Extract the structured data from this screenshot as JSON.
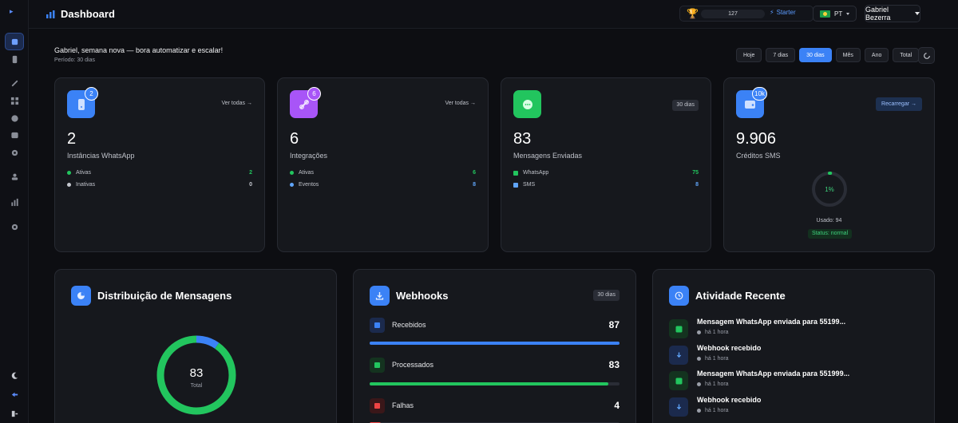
{
  "header": {
    "title": "Dashboard",
    "xp_value": "127",
    "plan": "Starter",
    "language": "PT",
    "user_name": "Gabriel Bezerra"
  },
  "greeting": {
    "message": "Gabriel, semana nova — bora automatizar e escalar!",
    "period": "Período: 30 dias"
  },
  "filters": {
    "options": [
      "Hoje",
      "7 dias",
      "30 dias",
      "Mês",
      "Ano",
      "Total"
    ],
    "active": "30 dias"
  },
  "stats": {
    "instances": {
      "badge": "2",
      "link": "Ver todas →",
      "value": "2",
      "label": "Instâncias WhatsApp",
      "rows": [
        {
          "label": "Ativas",
          "value": "2"
        },
        {
          "label": "Inativas",
          "value": "0"
        }
      ]
    },
    "integrations": {
      "badge": "6",
      "link": "Ver todas →",
      "value": "6",
      "label": "Integrações",
      "rows": [
        {
          "label": "Ativas",
          "value": "6"
        },
        {
          "label": "Eventos",
          "value": "8"
        }
      ]
    },
    "messages": {
      "tag": "30 dias",
      "value": "83",
      "label": "Mensagens Enviadas",
      "rows": [
        {
          "label": "WhatsApp",
          "value": "75"
        },
        {
          "label": "SMS",
          "value": "8"
        }
      ]
    },
    "sms": {
      "badge": "10k",
      "button": "Recarregar →",
      "value": "9.906",
      "label": "Créditos SMS",
      "usage_percent": 1,
      "usage_label": "1%",
      "used": "Usado: 94",
      "status": "Status: normal"
    }
  },
  "distribution": {
    "title": "Distribuição de Mensagens",
    "total": "83",
    "total_label": "Total",
    "whatsapp": 75,
    "sms": 8
  },
  "webhooks": {
    "title": "Webhooks",
    "tag": "30 dias",
    "items": [
      {
        "label": "Recebidos",
        "value": "87",
        "fraction": 1.0
      },
      {
        "label": "Processados",
        "value": "83",
        "fraction": 0.954
      },
      {
        "label": "Falhas",
        "value": "4",
        "fraction": 0.046
      }
    ]
  },
  "activity": {
    "title": "Atividade Recente",
    "items": [
      {
        "title": "Mensagem WhatsApp enviada para 55199...",
        "time": "há 1 hora"
      },
      {
        "title": "Webhook recebido",
        "time": "há 1 hora"
      },
      {
        "title": "Mensagem WhatsApp enviada para 551999...",
        "time": "há 1 hora"
      },
      {
        "title": "Webhook recebido",
        "time": "há 1 hora"
      }
    ]
  },
  "colors": {
    "accent": "#3b82f6",
    "success": "#22c55e",
    "danger": "#ef4444",
    "purple": "#a855f7"
  }
}
